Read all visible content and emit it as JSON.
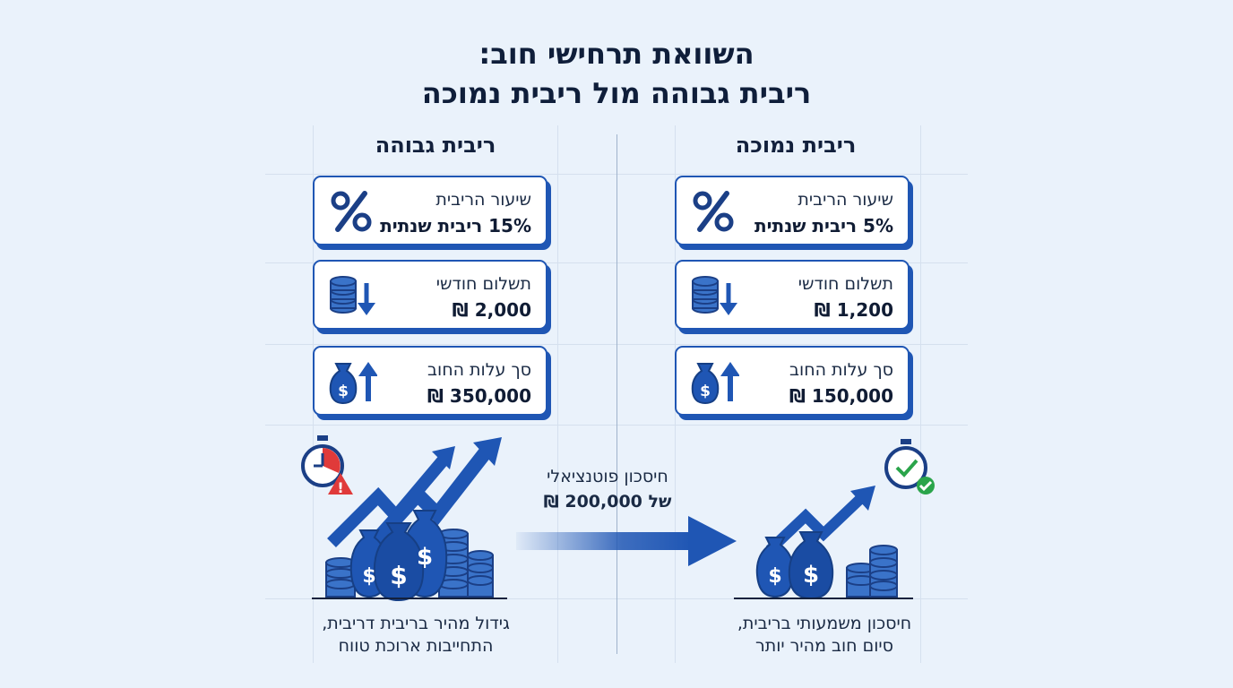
{
  "title": {
    "line1": "השוואת תרחישי חוב:",
    "line2": "ריבית גבוהה מול ריבית נמוכה"
  },
  "columns": {
    "low": {
      "header": "ריבית נמוכה",
      "cards": [
        {
          "icon": "percent-icon",
          "label": "שיעור הריבית",
          "value": "5% ריבית שנתית"
        },
        {
          "icon": "coins-down-icon",
          "label": "תשלום חודשי",
          "value": "1,200 ₪"
        },
        {
          "icon": "money-bag-up-icon",
          "label": "סך עלות החוב",
          "value": "150,000 ₪"
        }
      ],
      "caption_line1": "חיסכון משמעותי בריבית,",
      "caption_line2": "סיום חוב מהיר יותר"
    },
    "high": {
      "header": "ריבית גבוהה",
      "cards": [
        {
          "icon": "percent-icon",
          "label": "שיעור הריבית",
          "value": "15% ריבית שנתית"
        },
        {
          "icon": "coins-down-icon",
          "label": "תשלום חודשי",
          "value": "2,000 ₪"
        },
        {
          "icon": "money-bag-up-icon",
          "label": "סך עלות החוב",
          "value": "350,000 ₪"
        }
      ],
      "caption_line1": "גידול מהיר בריבית דריבית,",
      "caption_line2": "התחייבות ארוכת טווח"
    }
  },
  "savings": {
    "line1": "חיסכון פוטנציאלי",
    "line2": "של 200,000 ₪"
  },
  "colors": {
    "accent": "#1f56b4",
    "background": "#eaf2fb",
    "warning": "#e03a3a",
    "success": "#2aa44a"
  }
}
